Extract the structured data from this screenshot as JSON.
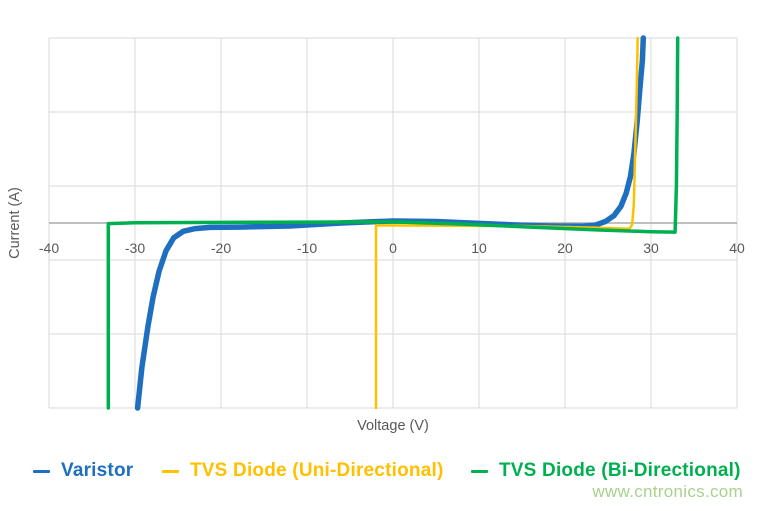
{
  "page": {
    "background": "#FFFFFF",
    "watermark": "www.cntronics.com",
    "watermark_color": "#A9D18E"
  },
  "chart_data": {
    "type": "line",
    "title": "",
    "xlabel": "Voltage (V)",
    "ylabel": "Current (A)",
    "xlim": [
      -40,
      40
    ],
    "ylim": [
      -100,
      100
    ],
    "xticks": [
      -40,
      -30,
      -20,
      -10,
      0,
      10,
      20,
      30,
      40
    ],
    "yticks": [],
    "ygridlines": [
      -100,
      -60,
      -20,
      20,
      60,
      100
    ],
    "grid": true,
    "grid_color": "#D9D9D9",
    "axis_color": "#ABABAB",
    "tick_color": "#595959",
    "legend_position": "bottom",
    "series": [
      {
        "name": "Varistor",
        "color": "#1E6FC0",
        "width": 5.5,
        "points": [
          [
            -29.7,
            -100
          ],
          [
            -29.2,
            -78
          ],
          [
            -28.5,
            -56
          ],
          [
            -27.9,
            -40
          ],
          [
            -27.2,
            -26
          ],
          [
            -26.4,
            -15
          ],
          [
            -25.5,
            -8
          ],
          [
            -24.4,
            -4.5
          ],
          [
            -23,
            -3
          ],
          [
            -21.3,
            -2.4
          ],
          [
            -18,
            -2.2
          ],
          [
            -12,
            -1.6
          ],
          [
            -6,
            0
          ],
          [
            0,
            1.1
          ],
          [
            5,
            0.8
          ],
          [
            10,
            -0.2
          ],
          [
            15,
            -1.2
          ],
          [
            19,
            -1.7
          ],
          [
            22,
            -1.8
          ],
          [
            23.5,
            -1.2
          ],
          [
            24.7,
            0.8
          ],
          [
            25.7,
            4
          ],
          [
            26.5,
            9
          ],
          [
            27.1,
            16
          ],
          [
            27.6,
            25
          ],
          [
            28,
            37
          ],
          [
            28.4,
            55
          ],
          [
            28.7,
            72
          ],
          [
            29,
            88
          ],
          [
            29.1,
            100
          ]
        ]
      },
      {
        "name": "TVS Diode (Uni-Directional)",
        "color": "#FFC000",
        "width": 2.5,
        "points": [
          [
            -1.98,
            -100
          ],
          [
            -1.98,
            -1.3
          ],
          [
            5,
            -1.4
          ],
          [
            15,
            -1.6
          ],
          [
            24,
            -2.6
          ],
          [
            27.5,
            -3.1
          ],
          [
            27.8,
            -1
          ],
          [
            28,
            10
          ],
          [
            28.2,
            45
          ],
          [
            28.35,
            75
          ],
          [
            28.45,
            100
          ]
        ]
      },
      {
        "name": "TVS Diode (Bi-Directional)",
        "color": "#00B050",
        "width": 3.5,
        "points": [
          [
            -33.1,
            -100
          ],
          [
            -33.1,
            -0.3
          ],
          [
            -30,
            0.1
          ],
          [
            -20,
            0.3
          ],
          [
            -10,
            0.5
          ],
          [
            0,
            0.6
          ],
          [
            8,
            -0.6
          ],
          [
            16,
            -2.2
          ],
          [
            24,
            -3.8
          ],
          [
            30,
            -4.7
          ],
          [
            32.8,
            -4.9
          ],
          [
            32.95,
            20
          ],
          [
            33.05,
            60
          ],
          [
            33.1,
            100
          ]
        ]
      }
    ]
  },
  "legend": {
    "items_note": "labels bound from chart_data.series names"
  }
}
